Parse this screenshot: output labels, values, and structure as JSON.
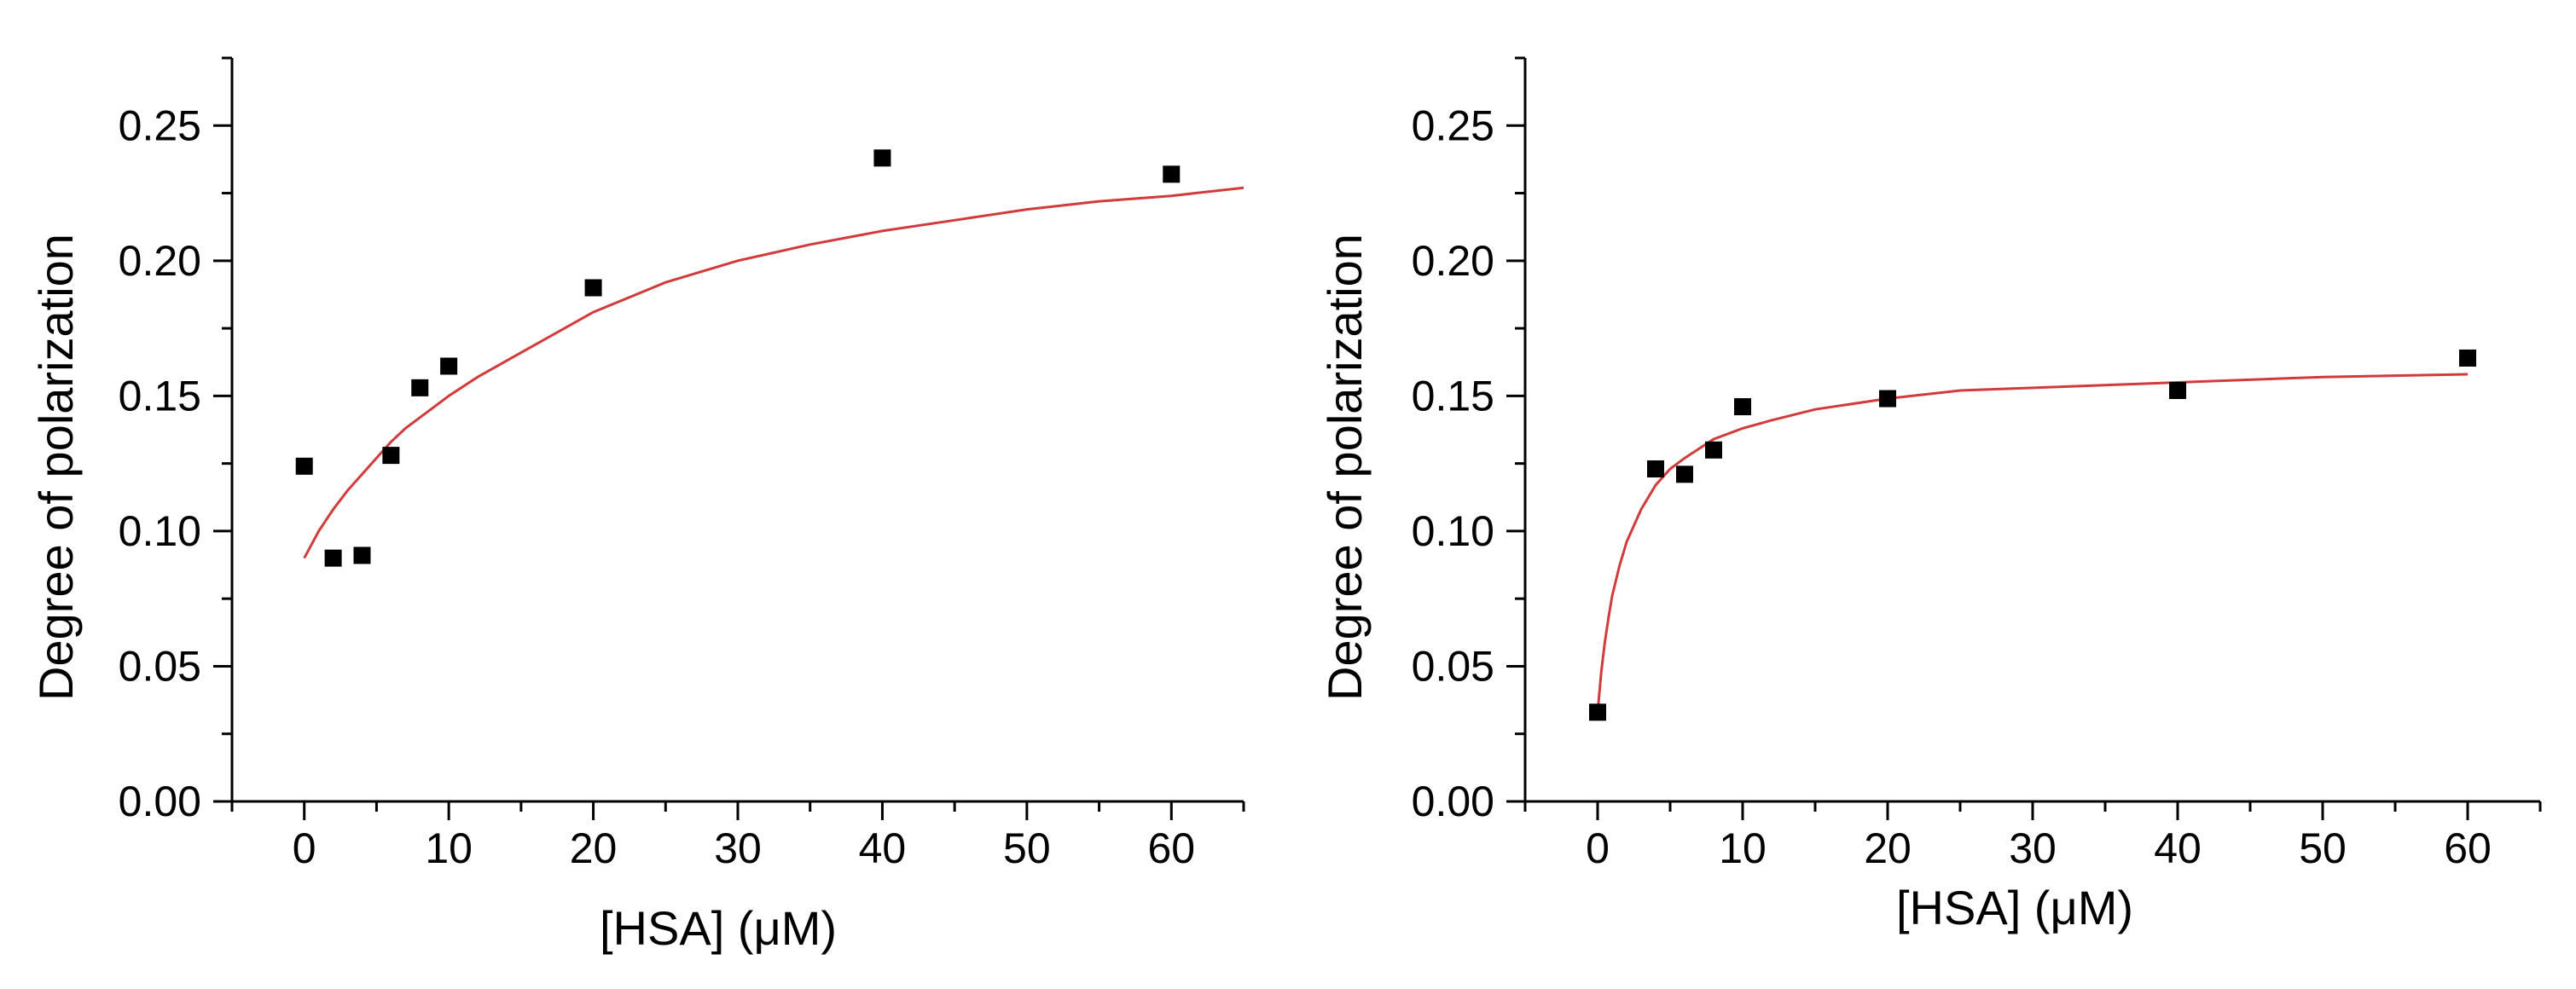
{
  "chart_data": [
    {
      "type": "scatter",
      "title": "",
      "xlabel": "[HSA] (μM)",
      "ylabel": "Degree of polarization",
      "xlim": [
        -5,
        65
      ],
      "ylim": [
        0,
        0.275
      ],
      "xticks": [
        0,
        10,
        20,
        30,
        40,
        50,
        60
      ],
      "xtick_labels": [
        "0",
        "10",
        "20",
        "30",
        "40",
        "50",
        "60"
      ],
      "yticks": [
        0,
        0.05,
        0.1,
        0.15,
        0.2,
        0.25
      ],
      "ytick_labels": [
        "0.00",
        "0.05",
        "0.10",
        "0.15",
        "0.20",
        "0.25"
      ],
      "grid": false,
      "series": [
        {
          "name": "data",
          "x": [
            0,
            2,
            4,
            6,
            8,
            10,
            20,
            40,
            60
          ],
          "y": [
            0.124,
            0.09,
            0.091,
            0.128,
            0.153,
            0.161,
            0.19,
            0.238,
            0.232
          ]
        }
      ],
      "fit": {
        "name": "fit",
        "x_range": [
          0,
          65
        ],
        "x": [
          0,
          1,
          2,
          3,
          4,
          5,
          6,
          7,
          8,
          10,
          12,
          15,
          20,
          25,
          30,
          35,
          40,
          45,
          50,
          55,
          60,
          65
        ],
        "y": [
          0.09,
          0.1,
          0.108,
          0.115,
          0.121,
          0.127,
          0.133,
          0.138,
          0.142,
          0.15,
          0.157,
          0.166,
          0.181,
          0.192,
          0.2,
          0.206,
          0.211,
          0.215,
          0.219,
          0.222,
          0.224,
          0.227
        ]
      },
      "colors": {
        "marker": "#000000",
        "fit": "#d23b3b"
      }
    },
    {
      "type": "scatter",
      "title": "",
      "xlabel": "[HSA] (μM)",
      "ylabel": "Degree of polarization",
      "xlim": [
        -5,
        65
      ],
      "ylim": [
        0,
        0.275
      ],
      "xticks": [
        0,
        10,
        20,
        30,
        40,
        50,
        60
      ],
      "xtick_labels": [
        "0",
        "10",
        "20",
        "30",
        "40",
        "50",
        "60"
      ],
      "yticks": [
        0,
        0.05,
        0.1,
        0.15,
        0.2,
        0.25
      ],
      "ytick_labels": [
        "0.00",
        "0.05",
        "0.10",
        "0.15",
        "0.20",
        "0.25"
      ],
      "grid": false,
      "series": [
        {
          "name": "data",
          "x": [
            0,
            4,
            6,
            8,
            10,
            20,
            40,
            60
          ],
          "y": [
            0.033,
            0.123,
            0.121,
            0.13,
            0.146,
            0.149,
            0.152,
            0.164
          ]
        }
      ],
      "fit": {
        "name": "fit",
        "x_range": [
          0,
          60
        ],
        "x": [
          0,
          0.25,
          0.5,
          0.75,
          1,
          1.5,
          2,
          3,
          4,
          5,
          6,
          8,
          10,
          12,
          15,
          20,
          25,
          30,
          40,
          50,
          60
        ],
        "y": [
          0.033,
          0.048,
          0.059,
          0.068,
          0.076,
          0.087,
          0.096,
          0.108,
          0.117,
          0.123,
          0.127,
          0.134,
          0.138,
          0.141,
          0.145,
          0.149,
          0.152,
          0.153,
          0.155,
          0.157,
          0.158
        ]
      },
      "colors": {
        "marker": "#000000",
        "fit": "#d23b3b"
      }
    }
  ]
}
